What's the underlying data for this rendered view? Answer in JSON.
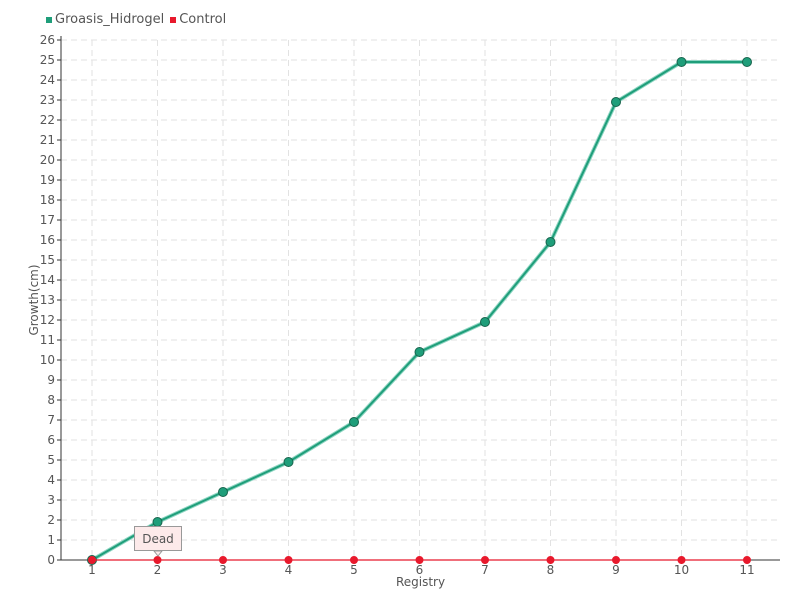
{
  "legend": [
    {
      "name": "Groasis_Hidrogel",
      "color": "#1f9e7a"
    },
    {
      "name": "Control",
      "color": "#e8192c"
    }
  ],
  "tooltip": {
    "text": "Dead"
  },
  "chart_data": {
    "type": "line",
    "xlabel": "Registry",
    "ylabel": "Growth(cm)",
    "x": [
      "1",
      "2",
      "3",
      "4",
      "5",
      "6",
      "7",
      "8",
      "9",
      "10",
      "11"
    ],
    "ylim": [
      0,
      26
    ],
    "yticks": [
      0,
      1,
      2,
      3,
      4,
      5,
      6,
      7,
      8,
      9,
      10,
      11,
      12,
      13,
      14,
      15,
      16,
      17,
      18,
      19,
      20,
      21,
      22,
      23,
      24,
      25,
      26
    ],
    "grid": true,
    "legend_position": "top-left",
    "series": [
      {
        "name": "Groasis_Hidrogel",
        "color": "#1f9e7a",
        "values": [
          0,
          1.9,
          3.4,
          4.9,
          6.9,
          10.4,
          11.9,
          15.9,
          22.9,
          24.9,
          24.9
        ]
      },
      {
        "name": "Control",
        "color": "#e8192c",
        "values": [
          0,
          0,
          0,
          0,
          0,
          0,
          0,
          0,
          0,
          0,
          0
        ]
      }
    ]
  }
}
